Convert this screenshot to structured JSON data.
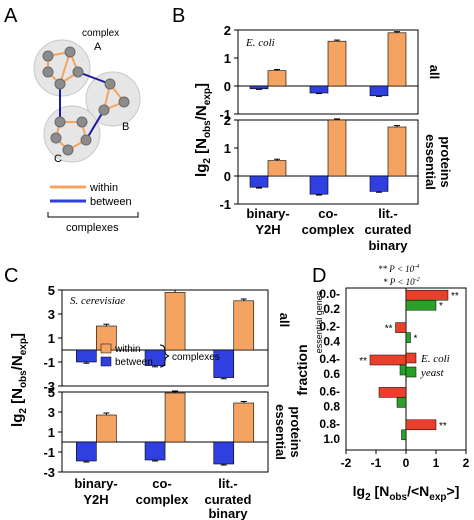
{
  "colors": {
    "within": "#f4a460",
    "between": "#2f3fe0",
    "ecoli": "#e8402a",
    "yeast": "#2aa02a",
    "node": "#8c8c8c",
    "bubble": "#e6e6e6"
  },
  "panels": {
    "a": "A",
    "b": "B",
    "c": "C",
    "d": "D"
  },
  "network": {
    "complex_word": "complex",
    "complex_labels": [
      "A",
      "B",
      "C"
    ],
    "legend": {
      "within": "within",
      "between": "between",
      "group": "complexes"
    }
  },
  "chart_data": [
    {
      "type": "bar",
      "panel": "B",
      "row": "all",
      "annotation": "E. coli",
      "categories": [
        "binary-Y2H",
        "co-complex",
        "lit.-curated binary"
      ],
      "series": [
        {
          "name": "within",
          "values": [
            0.55,
            1.6,
            1.9
          ],
          "errors": [
            0.04,
            0.04,
            0.04
          ]
        },
        {
          "name": "between",
          "values": [
            -0.1,
            -0.25,
            -0.35
          ],
          "errors": [
            0.02,
            0.02,
            0.02
          ]
        }
      ],
      "ylim": [
        -1,
        2
      ],
      "yticks": [
        -1,
        0,
        1,
        2
      ]
    },
    {
      "type": "bar",
      "panel": "B",
      "row": "essential proteins",
      "categories": [
        "binary-Y2H",
        "co-complex",
        "lit.-curated binary"
      ],
      "series": [
        {
          "name": "within",
          "values": [
            0.55,
            2.0,
            1.75
          ],
          "errors": [
            0.05,
            0.04,
            0.05
          ]
        },
        {
          "name": "between",
          "values": [
            -0.4,
            -0.65,
            -0.55
          ],
          "errors": [
            0.03,
            0.03,
            0.03
          ]
        }
      ],
      "ylim": [
        -1,
        2
      ],
      "yticks": [
        -1,
        0,
        1,
        2
      ]
    },
    {
      "type": "bar",
      "panel": "C",
      "row": "all",
      "annotation": "S. cerevisiae",
      "categories": [
        "binary-Y2H",
        "co-complex",
        "lit.-curated binary"
      ],
      "series": [
        {
          "name": "within",
          "values": [
            2.0,
            4.8,
            4.1
          ],
          "errors": [
            0.15,
            0.2,
            0.15
          ]
        },
        {
          "name": "between",
          "values": [
            -1.0,
            -1.3,
            -2.3
          ],
          "errors": [
            0.1,
            0.1,
            0.1
          ]
        }
      ],
      "ylim": [
        -3,
        5
      ],
      "yticks": [
        -3,
        -1,
        1,
        3,
        5
      ]
    },
    {
      "type": "bar",
      "panel": "C",
      "row": "essential proteins",
      "categories": [
        "binary-Y2H",
        "co-complex",
        "lit.-curated binary"
      ],
      "series": [
        {
          "name": "within",
          "values": [
            2.7,
            4.9,
            3.9
          ],
          "errors": [
            0.2,
            0.2,
            0.15
          ]
        },
        {
          "name": "between",
          "values": [
            -1.9,
            -1.8,
            -2.2
          ],
          "errors": [
            0.1,
            0.1,
            0.1
          ]
        }
      ],
      "ylim": [
        -3,
        5
      ],
      "yticks": [
        -3,
        -1,
        1,
        3,
        5
      ]
    },
    {
      "type": "bar",
      "panel": "D",
      "orientation": "horizontal",
      "categories": [
        "0.0-0.2",
        "0.2-0.4",
        "0.4-0.6",
        "0.6-0.8",
        "0.8-1.0"
      ],
      "series": [
        {
          "name": "E. coli",
          "values": [
            1.4,
            -0.35,
            -1.2,
            -0.9,
            1.0
          ],
          "significance": [
            "**",
            "**",
            "**",
            "",
            "**"
          ]
        },
        {
          "name": "yeast",
          "values": [
            1.0,
            0.15,
            -0.2,
            -0.3,
            -0.15
          ],
          "significance": [
            "*",
            "*",
            "",
            "",
            ""
          ]
        }
      ],
      "xlim": [
        -2,
        2
      ],
      "xticks": [
        -2,
        -1,
        0,
        1,
        2
      ],
      "significance_key": [
        {
          "mark": "**",
          "text": "P < 10"
        },
        {
          "mark": "*",
          "text": "P < 10"
        }
      ]
    }
  ],
  "labels": {
    "bc_ylabel": {
      "main": "lg",
      "sub2": "2",
      "bracket_open": " [N",
      "obs": "obs",
      "slash": "/N",
      "exp": "exp",
      "bracket_close": "]"
    },
    "row_all": "all",
    "row_ess_1": "essential",
    "row_ess_2": "proteins",
    "cat_1a": "binary-",
    "cat_1b": "Y2H",
    "cat_2a": "co-",
    "cat_2b": "complex",
    "cat_3a": "lit.-",
    "cat_3b": "curated",
    "cat_3c": "binary",
    "c_legend": {
      "within": "within",
      "between": "between",
      "group": "complexes"
    },
    "d_ylabel_main": "fraction",
    "d_ylabel_sub": "essential genes",
    "d_xlabel": {
      "main": "lg",
      "sub2": "2",
      "rest1": " [N",
      "obs": "obs",
      "rest2": "/<N",
      "exp": "exp",
      "rest3": ">]"
    },
    "d_key": {
      "p_exp_1": "-4",
      "p_exp_2": "-2"
    }
  }
}
